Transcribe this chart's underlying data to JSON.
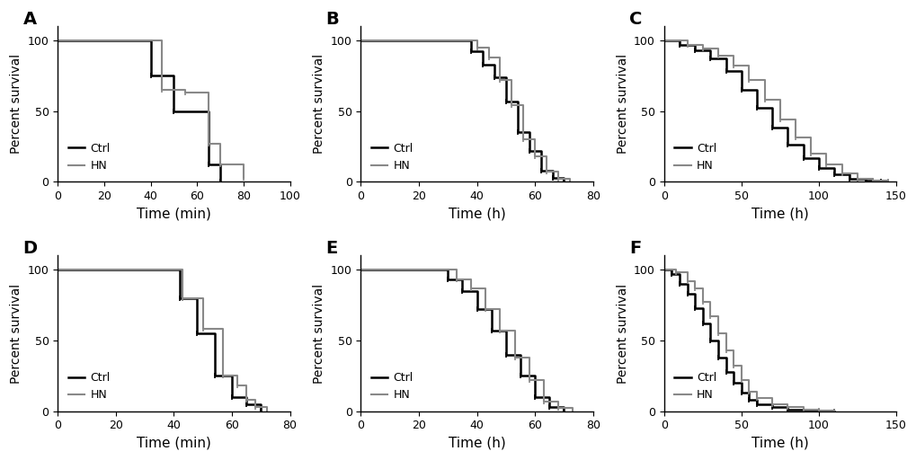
{
  "panels": [
    {
      "label": "A",
      "xlabel": "Time (min)",
      "xlim": [
        0,
        100
      ],
      "xticks": [
        0,
        20,
        40,
        60,
        80,
        100
      ],
      "ctrl": {
        "x": [
          0,
          40,
          50,
          65,
          70
        ],
        "y": [
          100,
          75,
          50,
          12,
          0
        ]
      },
      "hn": {
        "x": [
          0,
          45,
          55,
          65,
          70,
          80
        ],
        "y": [
          100,
          65,
          63,
          27,
          12,
          3
        ]
      }
    },
    {
      "label": "B",
      "xlabel": "Time (h)",
      "xlim": [
        0,
        80
      ],
      "xticks": [
        0,
        20,
        40,
        60,
        80
      ],
      "ctrl": {
        "x": [
          0,
          38,
          42,
          46,
          50,
          54,
          58,
          62,
          66,
          70
        ],
        "y": [
          100,
          92,
          83,
          74,
          57,
          35,
          22,
          8,
          3,
          0
        ]
      },
      "hn": {
        "x": [
          0,
          40,
          44,
          48,
          52,
          56,
          60,
          64,
          68,
          72
        ],
        "y": [
          100,
          95,
          88,
          72,
          54,
          30,
          18,
          7,
          2,
          0
        ]
      }
    },
    {
      "label": "C",
      "xlabel": "Time (h)",
      "xlim": [
        0,
        150
      ],
      "xticks": [
        0,
        50,
        100,
        150
      ],
      "ctrl": {
        "x": [
          0,
          10,
          20,
          30,
          40,
          50,
          60,
          70,
          80,
          90,
          100,
          110,
          120,
          130,
          140
        ],
        "y": [
          100,
          97,
          93,
          87,
          78,
          65,
          52,
          38,
          26,
          17,
          10,
          5,
          2,
          1,
          0
        ]
      },
      "hn": {
        "x": [
          0,
          15,
          25,
          35,
          45,
          55,
          65,
          75,
          85,
          95,
          105,
          115,
          125,
          135,
          145
        ],
        "y": [
          100,
          97,
          94,
          89,
          82,
          72,
          58,
          44,
          31,
          20,
          12,
          6,
          2,
          1,
          0
        ]
      }
    },
    {
      "label": "D",
      "xlabel": "Time (min)",
      "xlim": [
        0,
        80
      ],
      "xticks": [
        0,
        20,
        40,
        60,
        80
      ],
      "ctrl": {
        "x": [
          0,
          42,
          48,
          54,
          60,
          65,
          70
        ],
        "y": [
          100,
          80,
          55,
          25,
          10,
          5,
          0
        ]
      },
      "hn": {
        "x": [
          0,
          43,
          50,
          57,
          62,
          65,
          68,
          72
        ],
        "y": [
          100,
          80,
          58,
          25,
          18,
          8,
          3,
          0
        ]
      }
    },
    {
      "label": "E",
      "xlabel": "Time (h)",
      "xlim": [
        0,
        80
      ],
      "xticks": [
        0,
        20,
        40,
        60,
        80
      ],
      "ctrl": {
        "x": [
          0,
          30,
          35,
          40,
          45,
          50,
          55,
          60,
          65,
          70
        ],
        "y": [
          100,
          93,
          85,
          72,
          57,
          40,
          25,
          10,
          3,
          0
        ]
      },
      "hn": {
        "x": [
          0,
          33,
          38,
          43,
          48,
          53,
          58,
          63,
          68,
          73
        ],
        "y": [
          100,
          93,
          87,
          72,
          57,
          38,
          22,
          7,
          2,
          0
        ]
      }
    },
    {
      "label": "F",
      "xlabel": "Time (h)",
      "xlim": [
        0,
        150
      ],
      "xticks": [
        0,
        50,
        100,
        150
      ],
      "ctrl": {
        "x": [
          0,
          5,
          10,
          15,
          20,
          25,
          30,
          35,
          40,
          45,
          50,
          55,
          60,
          70,
          80,
          90,
          100,
          110
        ],
        "y": [
          100,
          97,
          90,
          83,
          73,
          62,
          50,
          38,
          28,
          20,
          13,
          8,
          5,
          3,
          1,
          0.5,
          0,
          0
        ]
      },
      "hn": {
        "x": [
          0,
          8,
          15,
          20,
          25,
          30,
          35,
          40,
          45,
          50,
          55,
          60,
          70,
          80,
          90,
          100,
          110
        ],
        "y": [
          100,
          98,
          92,
          87,
          77,
          67,
          55,
          43,
          32,
          22,
          14,
          9,
          5,
          3,
          1,
          0.5,
          0
        ]
      }
    }
  ],
  "ctrl_color": "#000000",
  "hn_color": "#888888",
  "linewidth": 1.5,
  "ylabel": "Percent survival",
  "ylim": [
    0,
    110
  ],
  "yticks": [
    0,
    50,
    100
  ],
  "legend_labels": [
    "Ctrl",
    "HN"
  ],
  "markersize": 4,
  "label_fontsize": 11,
  "tick_fontsize": 9,
  "panel_label_fontsize": 14
}
